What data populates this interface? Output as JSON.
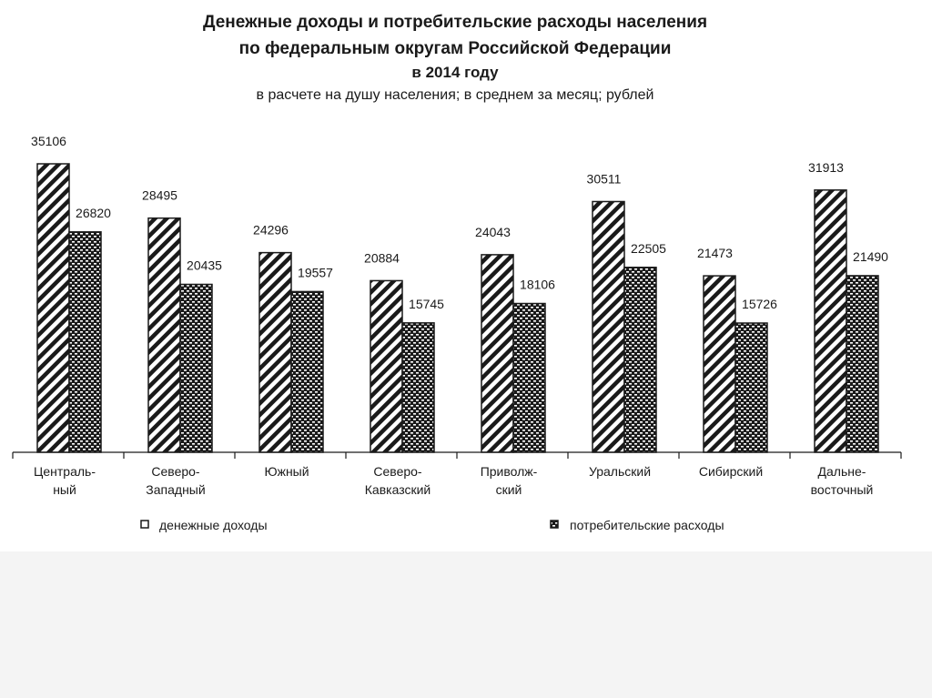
{
  "chart_data": {
    "type": "bar",
    "title": "Денежные доходы и потребительские расходы населения",
    "title_line2": "по федеральным округам Российской Федерации",
    "title_line3": "в 2014 году",
    "subtitle": "в расчете на душу населения; в среднем за месяц; рублей",
    "categories": [
      [
        "Централь-",
        "ный"
      ],
      [
        "Северо-",
        "Западный"
      ],
      [
        "Южный"
      ],
      [
        "Северо-",
        "Кавказский"
      ],
      [
        "Приволж-",
        "ский"
      ],
      [
        "Уральский"
      ],
      [
        "Сибирский"
      ],
      [
        "Дальне-",
        "восточный"
      ]
    ],
    "series": [
      {
        "name": "денежные доходы",
        "values": [
          35106,
          28495,
          24296,
          20884,
          24043,
          30511,
          21473,
          31913
        ]
      },
      {
        "name": "потребительские расходы",
        "values": [
          26820,
          20435,
          19557,
          15745,
          18106,
          22505,
          15726,
          21490
        ]
      }
    ],
    "ylim": [
      0,
      35106
    ],
    "legend_position": "bottom",
    "grid": false,
    "colors": {
      "ink": "#1a1a1a",
      "background": "#ffffff"
    }
  }
}
